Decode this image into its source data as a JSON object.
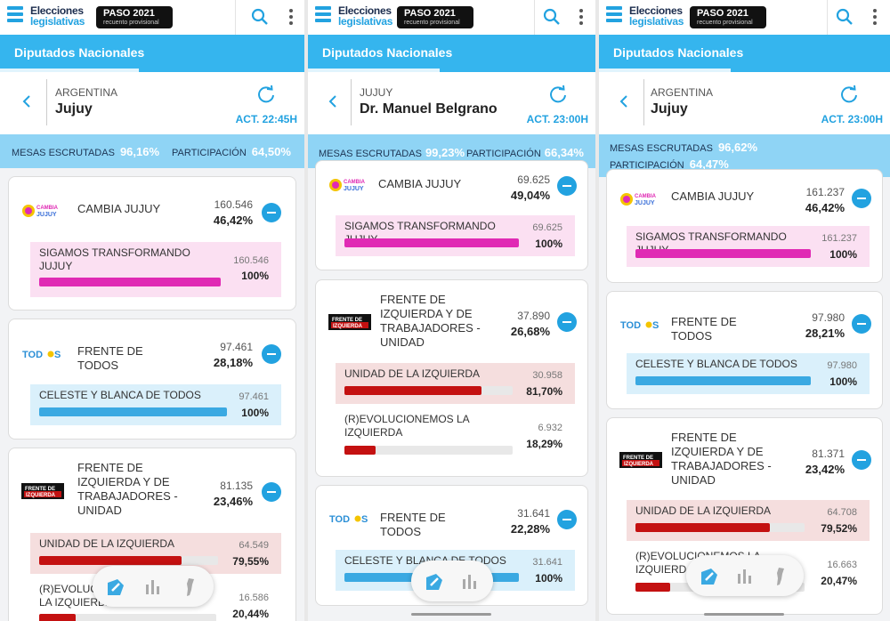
{
  "app": {
    "logo_line1": "Elecciones",
    "logo_line2": "legislativas",
    "badge_title": "PASO 2021",
    "badge_sub": "recuento provisional",
    "tab": "Diputados Nacionales"
  },
  "colors": {
    "accent": "#22a2e0",
    "tab_bg": "#35b5ee",
    "stats_bg": "#8fd4f5",
    "pink": "#e02ab4",
    "blue": "#3aa9e2",
    "red": "#c41111"
  },
  "panels": [
    {
      "region": "ARGENTINA",
      "place": "Jujuy",
      "updated": "ACT. 22:45H",
      "mesas_label": "MESAS ESCRUTADAS",
      "mesas_value": "96,16%",
      "part_label": "PARTICIPACIÓN",
      "part_value": "64,50%",
      "cards": [
        {
          "party": "CAMBIA JUJUY",
          "votes": "160.546",
          "pct": "46,42%",
          "logo": "cambia-jujuy-logo",
          "lists": [
            {
              "name": "SIGAMOS TRANSFORMANDO JUJUY",
              "votes": "160.546",
              "pct": "100%",
              "share": 1.0
            }
          ]
        },
        {
          "party": "FRENTE DE TODOS",
          "votes": "97.461",
          "pct": "28,18%",
          "logo": "frente-de-todos-logo",
          "lists": [
            {
              "name": "CELESTE Y BLANCA DE TODOS",
              "votes": "97.461",
              "pct": "100%",
              "share": 1.0
            }
          ]
        },
        {
          "party": "FRENTE DE IZQUIERDA Y DE TRABAJADORES - UNIDAD",
          "votes": "81.135",
          "pct": "23,46%",
          "logo": "frente-de-izquierda-logo",
          "lists": [
            {
              "name": "UNIDAD DE LA IZQUIERDA",
              "votes": "64.549",
              "pct": "79,55%",
              "share": 0.7955
            },
            {
              "name": "(R)EVOLUCIONEMOS LA IZQUIERDA",
              "votes": "16.586",
              "pct": "20,44%",
              "share": 0.2044
            }
          ]
        }
      ]
    },
    {
      "region": "JUJUY",
      "place": "Dr. Manuel Belgrano",
      "updated": "ACT. 23:00H",
      "mesas_label": "MESAS ESCRUTADAS",
      "mesas_value": "99,23%",
      "part_label": "PARTICIPACIÓN",
      "part_value": "66,34%",
      "cards": [
        {
          "party": "CAMBIA JUJUY",
          "votes": "69.625",
          "pct": "49,04%",
          "logo": "cambia-jujuy-logo",
          "lists": [
            {
              "name": "SIGAMOS TRANSFORMANDO JUJUY",
              "votes": "69.625",
              "pct": "100%",
              "share": 1.0
            }
          ]
        },
        {
          "party": "FRENTE DE IZQUIERDA Y DE TRABAJADORES - UNIDAD",
          "votes": "37.890",
          "pct": "26,68%",
          "logo": "frente-de-izquierda-logo",
          "lists": [
            {
              "name": "UNIDAD DE LA IZQUIERDA",
              "votes": "30.958",
              "pct": "81,70%",
              "share": 0.817
            },
            {
              "name": "(R)EVOLUCIONEMOS LA IZQUIERDA",
              "votes": "6.932",
              "pct": "18,29%",
              "share": 0.1829
            }
          ]
        },
        {
          "party": "FRENTE DE TODOS",
          "votes": "31.641",
          "pct": "22,28%",
          "logo": "frente-de-todos-logo",
          "lists": [
            {
              "name": "CELESTE Y BLANCA DE TODOS",
              "votes": "31.641",
              "pct": "100%",
              "share": 1.0
            }
          ]
        }
      ]
    },
    {
      "region": "ARGENTINA",
      "place": "Jujuy",
      "updated": "ACT. 23:00H",
      "mesas_label": "MESAS ESCRUTADAS",
      "mesas_value": "96,62%",
      "part_label": "PARTICIPACIÓN",
      "part_value": "64,47%",
      "cards": [
        {
          "party": "CAMBIA JUJUY",
          "votes": "161.237",
          "pct": "46,42%",
          "logo": "cambia-jujuy-logo",
          "lists": [
            {
              "name": "SIGAMOS TRANSFORMANDO JUJUY",
              "votes": "161.237",
              "pct": "100%",
              "share": 1.0
            }
          ]
        },
        {
          "party": "FRENTE DE TODOS",
          "votes": "97.980",
          "pct": "28,21%",
          "logo": "frente-de-todos-logo",
          "lists": [
            {
              "name": "CELESTE Y BLANCA DE TODOS",
              "votes": "97.980",
              "pct": "100%",
              "share": 1.0
            }
          ]
        },
        {
          "party": "FRENTE DE IZQUIERDA Y DE TRABAJADORES - UNIDAD",
          "votes": "81.371",
          "pct": "23,42%",
          "logo": "frente-de-izquierda-logo",
          "lists": [
            {
              "name": "UNIDAD DE LA IZQUIERDA",
              "votes": "64.708",
              "pct": "79,52%",
              "share": 0.7952
            },
            {
              "name": "(R)EVOLUCIONEMOS LA IZQUIERDA",
              "votes": "16.663",
              "pct": "20,47%",
              "share": 0.2047
            }
          ]
        }
      ]
    }
  ]
}
